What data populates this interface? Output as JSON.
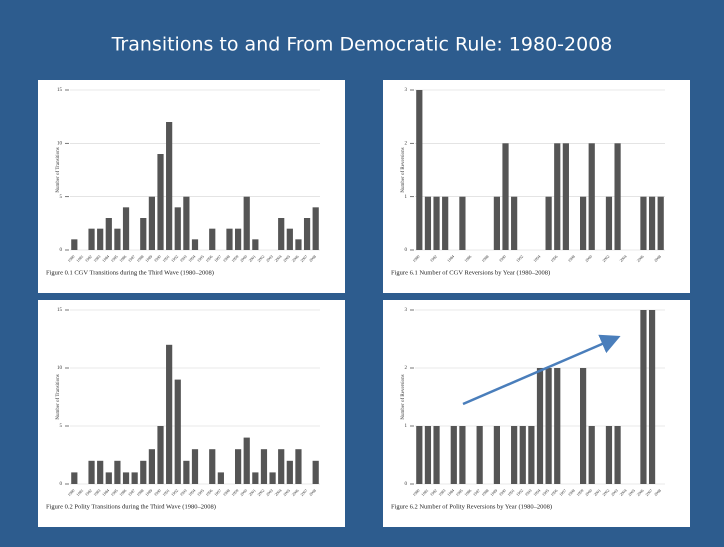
{
  "title": "Transitions to and From Democratic Rule: 1980-2008",
  "chart_data": [
    {
      "type": "bar",
      "caption": "Figure 0.1 CGV Transitions during the Third Wave (1980–2008)",
      "ylabel": "Number of Transitions",
      "categories": [
        "1980",
        "1981",
        "1982",
        "1983",
        "1984",
        "1985",
        "1986",
        "1987",
        "1988",
        "1989",
        "1990",
        "1991",
        "1992",
        "1993",
        "1994",
        "1995",
        "1996",
        "1997",
        "1998",
        "1999",
        "2000",
        "2001",
        "2002",
        "2003",
        "2004",
        "2005",
        "2006",
        "2007",
        "2008"
      ],
      "values": [
        1,
        0,
        2,
        2,
        3,
        2,
        4,
        0,
        3,
        5,
        9,
        12,
        4,
        5,
        1,
        0,
        2,
        0,
        2,
        2,
        5,
        1,
        0,
        0,
        3,
        2,
        1,
        3,
        4
      ],
      "color": "#555555",
      "ylim": [
        0,
        15
      ],
      "yticks": [
        0,
        5,
        10,
        15
      ],
      "grid": true
    },
    {
      "type": "bar",
      "caption": "Figure 6.1 Number of CGV Reversions by Year (1980–2008)",
      "ylabel": "Number of Reversions",
      "categories": [
        "1980",
        null,
        "1982",
        null,
        "1984",
        null,
        "1986",
        null,
        "1988",
        null,
        "1990",
        null,
        "1992",
        null,
        "1994",
        null,
        "1996",
        null,
        "1998",
        null,
        "2000",
        null,
        "2002",
        null,
        "2004",
        null,
        "2006",
        null,
        "2008"
      ],
      "values": [
        3,
        1,
        1,
        1,
        0,
        1,
        0,
        0,
        0,
        1,
        2,
        1,
        0,
        0,
        0,
        1,
        2,
        2,
        0,
        1,
        2,
        0,
        1,
        2,
        0,
        0,
        1,
        1,
        1
      ],
      "color": "#555555",
      "ylim": [
        0,
        3
      ],
      "yticks": [
        0,
        1,
        2,
        3
      ],
      "grid": true
    },
    {
      "type": "bar",
      "caption": "Figure 0.2 Polity Transitions during the Third Wave (1980–2008)",
      "ylabel": "Number of Transitions",
      "categories": [
        "1980",
        "1981",
        "1982",
        "1983",
        "1984",
        "1985",
        "1986",
        "1987",
        "1988",
        "1989",
        "1990",
        "1991",
        "1992",
        "1993",
        "1994",
        "1995",
        "1996",
        "1997",
        "1998",
        "1999",
        "2000",
        "2001",
        "2002",
        "2003",
        "2004",
        "2005",
        "2006",
        "2007",
        "2008"
      ],
      "values": [
        1,
        0,
        2,
        2,
        1,
        2,
        1,
        1,
        2,
        3,
        5,
        12,
        9,
        2,
        3,
        0,
        3,
        1,
        0,
        3,
        4,
        1,
        3,
        1,
        3,
        2,
        3,
        0,
        2
      ],
      "color": "#555555",
      "ylim": [
        0,
        15
      ],
      "yticks": [
        0,
        5,
        10,
        15
      ],
      "grid": true
    },
    {
      "type": "bar",
      "caption": "Figure 6.2 Number of Polity Reversions by Year (1980–2008)",
      "ylabel": "Number of Reversions",
      "categories": [
        "1980",
        "1981",
        "1982",
        "1983",
        "1984",
        "1985",
        "1986",
        "1987",
        "1988",
        "1989",
        "1990",
        "1991",
        "1992",
        "1993",
        "1994",
        "1995",
        "1996",
        "1997",
        "1998",
        "1999",
        "2000",
        "2001",
        "2002",
        "2003",
        "2004",
        "2005",
        "2006",
        "2007",
        "2008"
      ],
      "values": [
        1,
        1,
        1,
        0,
        1,
        1,
        0,
        1,
        0,
        1,
        0,
        1,
        1,
        1,
        2,
        2,
        2,
        0,
        0,
        2,
        1,
        0,
        1,
        1,
        0,
        0,
        3,
        3,
        0
      ],
      "color": "#555555",
      "ylim": [
        0,
        3
      ],
      "yticks": [
        0,
        1,
        2,
        3
      ],
      "grid": true
    }
  ]
}
